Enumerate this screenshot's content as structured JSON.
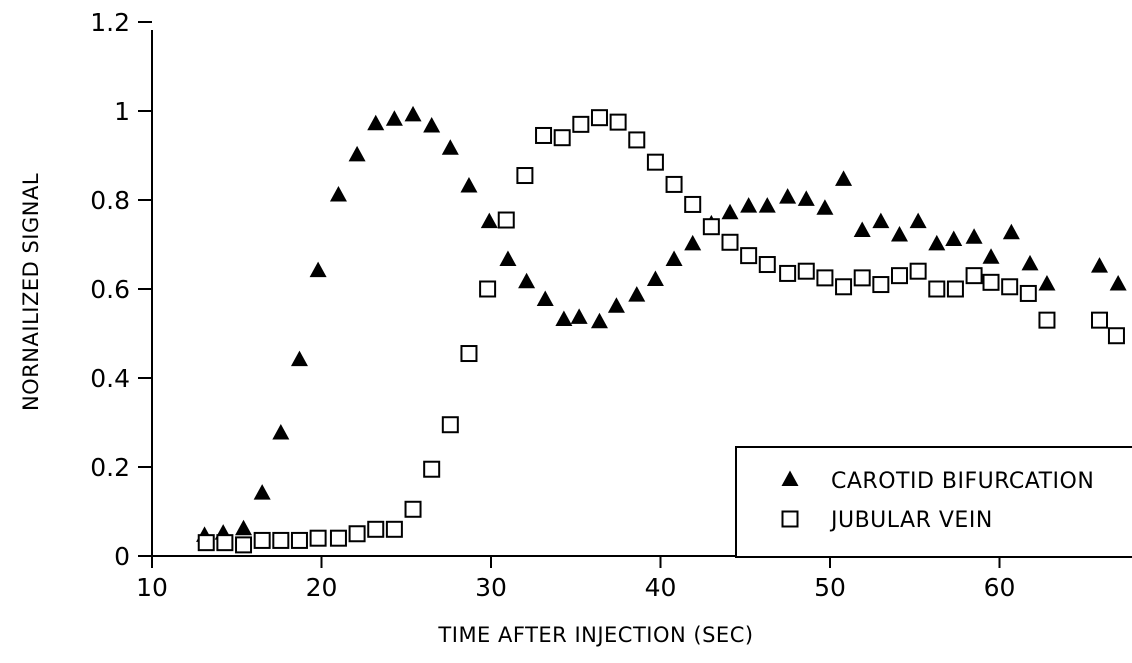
{
  "chart_data": {
    "type": "scatter",
    "title": "",
    "xlabel": "TIME AFTER INJECTION (SEC)",
    "ylabel": "NORNAILIZED SIGNAL",
    "xlim": [
      10,
      67
    ],
    "ylim": [
      0,
      1.2
    ],
    "x_ticks": [
      10,
      20,
      30,
      40,
      50,
      60
    ],
    "x_tick_labels": [
      "10",
      "20",
      "30",
      "40",
      "50",
      "60"
    ],
    "y_ticks": [
      0,
      0.2,
      0.4,
      0.6,
      0.8,
      1,
      1.2
    ],
    "y_tick_labels": [
      "0",
      "0.2",
      "0.4",
      "0.6",
      "0.8",
      "1",
      "1.2"
    ],
    "grid": false,
    "legend_position": "bottom-right",
    "series": [
      {
        "name": "CAROTID BIFURCATION",
        "marker": "filled-triangle",
        "color": "#000000",
        "x": [
          13.1,
          14.2,
          15.4,
          16.5,
          17.6,
          18.7,
          19.8,
          21.0,
          22.1,
          23.2,
          24.3,
          25.4,
          26.5,
          27.6,
          28.7,
          29.9,
          31.0,
          32.1,
          33.2,
          34.3,
          35.2,
          36.4,
          37.4,
          38.6,
          39.7,
          40.8,
          41.9,
          43.0,
          44.1,
          45.2,
          46.3,
          47.5,
          48.6,
          49.7,
          50.8,
          51.9,
          53.0,
          54.1,
          55.2,
          56.3,
          57.3,
          58.5,
          59.5,
          60.7,
          61.8,
          62.8,
          65.9,
          67.0
        ],
        "y": [
          0.045,
          0.05,
          0.06,
          0.14,
          0.275,
          0.44,
          0.64,
          0.81,
          0.9,
          0.97,
          0.98,
          0.99,
          0.965,
          0.915,
          0.83,
          0.75,
          0.665,
          0.615,
          0.575,
          0.53,
          0.535,
          0.525,
          0.56,
          0.585,
          0.62,
          0.665,
          0.7,
          0.745,
          0.77,
          0.785,
          0.785,
          0.805,
          0.8,
          0.78,
          0.845,
          0.73,
          0.75,
          0.72,
          0.75,
          0.7,
          0.71,
          0.715,
          0.67,
          0.725,
          0.655,
          0.61,
          0.65,
          0.61
        ]
      },
      {
        "name": "JUBULAR VEIN",
        "marker": "open-square",
        "color": "#000000",
        "x": [
          13.2,
          14.3,
          15.4,
          16.5,
          17.6,
          18.7,
          19.8,
          21.0,
          22.1,
          23.2,
          24.3,
          25.4,
          26.5,
          27.6,
          28.7,
          29.8,
          30.9,
          32.0,
          33.1,
          34.2,
          35.3,
          36.4,
          37.5,
          38.6,
          39.7,
          40.8,
          41.9,
          43.0,
          44.1,
          45.2,
          46.3,
          47.5,
          48.6,
          49.7,
          50.8,
          51.9,
          53.0,
          54.1,
          55.2,
          56.3,
          57.4,
          58.5,
          59.5,
          60.6,
          61.7,
          62.8,
          65.9,
          66.9
        ],
        "y": [
          0.03,
          0.03,
          0.025,
          0.035,
          0.035,
          0.035,
          0.04,
          0.04,
          0.05,
          0.06,
          0.06,
          0.105,
          0.195,
          0.295,
          0.455,
          0.6,
          0.755,
          0.855,
          0.945,
          0.94,
          0.97,
          0.985,
          0.975,
          0.935,
          0.885,
          0.835,
          0.79,
          0.74,
          0.705,
          0.675,
          0.655,
          0.635,
          0.64,
          0.625,
          0.605,
          0.625,
          0.61,
          0.63,
          0.64,
          0.6,
          0.6,
          0.63,
          0.615,
          0.605,
          0.59,
          0.53,
          0.53,
          0.495
        ]
      }
    ]
  }
}
